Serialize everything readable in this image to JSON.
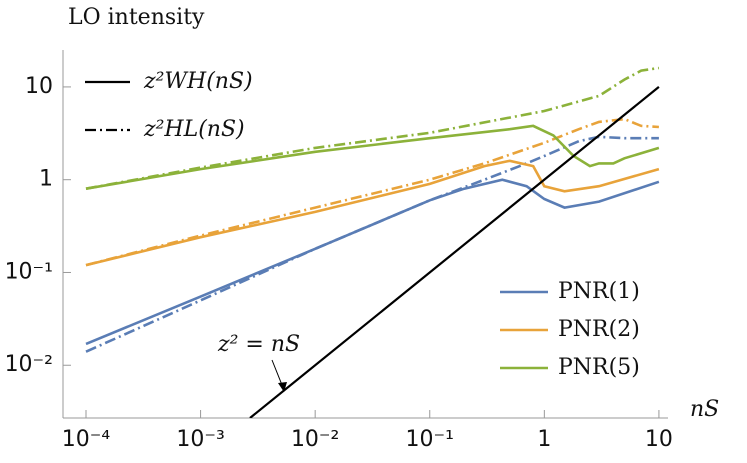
{
  "chart_data": {
    "type": "line",
    "title": "LO intensity",
    "x_label": "nS",
    "log_x": true,
    "log_y": true,
    "xlim": [
      6.3e-05,
      12
    ],
    "ylim": [
      0.0027,
      25
    ],
    "xticks": [
      {
        "value": 0.0001,
        "label": "10⁻⁴"
      },
      {
        "value": 0.001,
        "label": "10⁻³"
      },
      {
        "value": 0.01,
        "label": "10⁻²"
      },
      {
        "value": 0.1,
        "label": "10⁻¹"
      },
      1,
      10
    ],
    "yticks": [
      {
        "value": 0.01,
        "label": "10⁻²"
      },
      {
        "value": 0.1,
        "label": "10⁻¹"
      },
      1,
      10
    ],
    "style_legend": [
      {
        "name": "z²WH(nS)",
        "dash": "solid"
      },
      {
        "name": "z²HL(nS)",
        "dash": "dashdot"
      }
    ],
    "legend": "lower right",
    "reference_line": {
      "text": "z² = nS",
      "color": "#000000",
      "x": [
        0.0027,
        10
      ],
      "values": [
        0.0027,
        10
      ]
    },
    "series": [
      {
        "name": "PNR(1)",
        "color": "#5a7db5",
        "dash": "solid",
        "x": [
          0.0001,
          0.001,
          0.01,
          0.1,
          0.2,
          0.43,
          0.7,
          1,
          1.5,
          3,
          10
        ],
        "values": [
          0.017,
          0.055,
          0.18,
          0.6,
          0.8,
          1.0,
          0.85,
          0.62,
          0.5,
          0.58,
          0.95
        ]
      },
      {
        "name": "PNR(1)",
        "color": "#5a7db5",
        "dash": "dashdot",
        "x": [
          0.0001,
          0.001,
          0.01,
          0.1,
          0.3,
          0.7,
          1,
          2,
          3,
          5,
          10
        ],
        "values": [
          0.014,
          0.05,
          0.18,
          0.6,
          1.0,
          1.5,
          1.8,
          2.6,
          2.9,
          2.8,
          2.8
        ]
      },
      {
        "name": "PNR(2)",
        "color": "#e8a33a",
        "dash": "solid",
        "x": [
          0.0001,
          0.001,
          0.01,
          0.1,
          0.3,
          0.5,
          0.8,
          1,
          1.5,
          3,
          10
        ],
        "values": [
          0.12,
          0.24,
          0.45,
          0.9,
          1.4,
          1.6,
          1.4,
          0.85,
          0.75,
          0.85,
          1.3
        ]
      },
      {
        "name": "PNR(2)",
        "color": "#e8a33a",
        "dash": "dashdot",
        "x": [
          0.0001,
          0.001,
          0.01,
          0.1,
          0.3,
          1,
          2,
          3,
          5,
          7,
          10
        ],
        "values": [
          0.12,
          0.25,
          0.5,
          1.0,
          1.5,
          2.5,
          3.5,
          4.2,
          4.5,
          3.8,
          3.7
        ]
      },
      {
        "name": "PNR(5)",
        "color": "#8cb23a",
        "dash": "solid",
        "x": [
          0.0001,
          0.001,
          0.01,
          0.1,
          0.5,
          0.8,
          1.2,
          1.8,
          2.5,
          3,
          4,
          5,
          10
        ],
        "values": [
          0.8,
          1.3,
          2.0,
          2.8,
          3.5,
          3.8,
          3.0,
          1.8,
          1.4,
          1.5,
          1.5,
          1.7,
          2.2
        ]
      },
      {
        "name": "PNR(5)",
        "color": "#8cb23a",
        "dash": "dashdot",
        "x": [
          0.0001,
          0.001,
          0.01,
          0.1,
          1,
          3,
          5,
          7,
          10
        ],
        "values": [
          0.8,
          1.35,
          2.2,
          3.2,
          5.5,
          8,
          12,
          15,
          16
        ]
      }
    ]
  }
}
